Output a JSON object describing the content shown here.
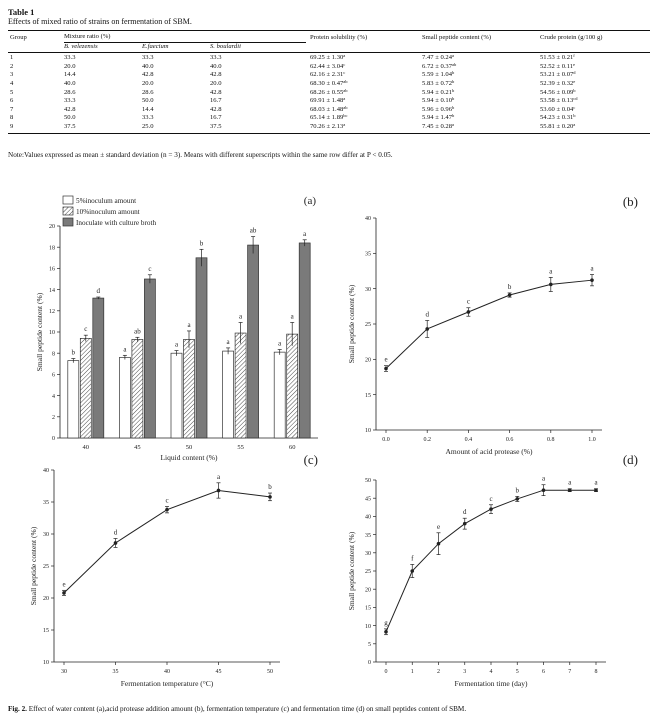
{
  "table": {
    "title": "Table 1",
    "caption": "Effects of mixed ratio of strains on fermentation of SBM.",
    "headers": {
      "group": "Group",
      "mixture": "Mixture ratio (%)",
      "solubility": "Protein solubility (%)",
      "peptide": "Small peptide content (%)",
      "crude": "Crude protein (g/100 g)"
    },
    "subheaders": [
      "B. velezensis",
      "E.faecium",
      "S. boulardii"
    ],
    "rows": [
      {
        "group": "1",
        "bv": "33.3",
        "ef": "33.3",
        "sb": "33.3",
        "sol": "69.25 ± 1.30",
        "sol_sup": "a",
        "pep": "7.47 ± 0.24",
        "pep_sup": "a",
        "cp": "51.53 ± 0.21",
        "cp_sup": "f"
      },
      {
        "group": "2",
        "bv": "20.0",
        "ef": "40.0",
        "sb": "40.0",
        "sol": "62.44 ± 3.04",
        "sol_sup": "c",
        "pep": "6.72 ± 0.37",
        "pep_sup": "ab",
        "cp": "52.52 ± 0.11",
        "cp_sup": "e"
      },
      {
        "group": "3",
        "bv": "14.4",
        "ef": "42.8",
        "sb": "42.8",
        "sol": "62.16 ± 2.31",
        "sol_sup": "c",
        "pep": "5.59 ± 1.04",
        "pep_sup": "b",
        "cp": "53.21 ± 0.07",
        "cp_sup": "d"
      },
      {
        "group": "4",
        "bv": "40.0",
        "ef": "20.0",
        "sb": "20.0",
        "sol": "68.30 ± 0.47",
        "sol_sup": "ab",
        "pep": "5.83 ± 0.72",
        "pep_sup": "b",
        "cp": "52.39 ± 0.32",
        "cp_sup": "e"
      },
      {
        "group": "5",
        "bv": "28.6",
        "ef": "28.6",
        "sb": "42.8",
        "sol": "68.26 ± 0.55",
        "sol_sup": "ab",
        "pep": "5.94 ± 0.21",
        "pep_sup": "b",
        "cp": "54.56 ± 0.09",
        "cp_sup": "b"
      },
      {
        "group": "6",
        "bv": "33.3",
        "ef": "50.0",
        "sb": "16.7",
        "sol": "69.91 ± 1.48",
        "sol_sup": "a",
        "pep": "5.94 ± 0.10",
        "pep_sup": "b",
        "cp": "53.58 ± 0.13",
        "cp_sup": "cd"
      },
      {
        "group": "7",
        "bv": "42.8",
        "ef": "14.4",
        "sb": "42.8",
        "sol": "68.03 ± 1.48",
        "sol_sup": "ab",
        "pep": "5.96 ± 0.96",
        "pep_sup": "b",
        "cp": "53.60 ± 0.04",
        "cp_sup": "c"
      },
      {
        "group": "8",
        "bv": "50.0",
        "ef": "33.3",
        "sb": "16.7",
        "sol": "65.14 ± 1.89",
        "sol_sup": "bc",
        "pep": "5.94 ± 1.47",
        "pep_sup": "b",
        "cp": "54.23 ± 0.31",
        "cp_sup": "b"
      },
      {
        "group": "9",
        "bv": "37.5",
        "ef": "25.0",
        "sb": "37.5",
        "sol": "70.26 ± 2.13",
        "sol_sup": "a",
        "pep": "7.45 ± 0.28",
        "pep_sup": "a",
        "cp": "55.81 ± 0.20",
        "cp_sup": "a"
      }
    ],
    "note": "Note:Values expressed as mean ± standard deviation (n = 3). Means with different superscripts within the same row differ at P < 0.05."
  },
  "figure_caption": {
    "label": "Fig. 2.",
    "text": "Effect of water content (a),acid protease addition amount (b), fermentation temperature (c) and fermentation time (d) on small peptides content of SBM."
  },
  "chart_data": [
    {
      "panel": "(a)",
      "type": "bar",
      "xlabel": "Liquid content (%)",
      "ylabel": "Small peptide content (%)",
      "categories": [
        "40",
        "45",
        "50",
        "55",
        "60"
      ],
      "ylim": [
        0,
        20
      ],
      "yticks": [
        0,
        2,
        4,
        6,
        8,
        10,
        12,
        14,
        16,
        18,
        20
      ],
      "legend_position": "top-left",
      "series": [
        {
          "name": "5%inoculum amount",
          "color": "#ffffff",
          "pattern": "open",
          "values": [
            7.3,
            7.6,
            8.0,
            8.2,
            8.1
          ],
          "errors": [
            0.2,
            0.2,
            0.25,
            0.3,
            0.25
          ],
          "labels": [
            "b",
            "a",
            "a",
            "a",
            "a"
          ]
        },
        {
          "name": "10%inoculum amount",
          "color": "#ffffff",
          "pattern": "hatched",
          "values": [
            9.4,
            9.3,
            9.3,
            9.9,
            9.8
          ],
          "errors": [
            0.3,
            0.2,
            0.8,
            1.0,
            1.1
          ],
          "labels": [
            "c",
            "ab",
            "a",
            "a",
            "a"
          ]
        },
        {
          "name": "Inoculate with culture broth",
          "color": "#7a7a7a",
          "pattern": "solid",
          "values": [
            13.2,
            15.0,
            17.0,
            18.2,
            18.4
          ],
          "errors": [
            0.1,
            0.4,
            0.8,
            0.8,
            0.3
          ],
          "labels": [
            "d",
            "c",
            "b",
            "ab",
            "a"
          ]
        }
      ]
    },
    {
      "panel": "(b)",
      "type": "line",
      "xlabel": "Amount of acid protease (%)",
      "ylabel": "Small peptide content (%)",
      "x": [
        0.0,
        0.2,
        0.4,
        0.6,
        0.8,
        1.0
      ],
      "xticks": [
        "0.0",
        "0.2",
        "0.4",
        "0.6",
        "0.8",
        "1.0"
      ],
      "ylim": [
        10,
        40
      ],
      "yticks": [
        10,
        15,
        20,
        25,
        30,
        35,
        40
      ],
      "series": [
        {
          "values": [
            18.7,
            24.3,
            26.7,
            29.1,
            30.6,
            31.2
          ],
          "errors": [
            0.4,
            1.2,
            0.6,
            0.3,
            1.0,
            0.8
          ],
          "labels": [
            "e",
            "d",
            "c",
            "b",
            "a",
            "a"
          ]
        }
      ]
    },
    {
      "panel": "(c)",
      "type": "line",
      "xlabel": "Fermentation temperature (°C)",
      "ylabel": "Small peptide content (%)",
      "x": [
        30,
        35,
        40,
        45,
        50
      ],
      "xticks": [
        "30",
        "35",
        "40",
        "45",
        "50"
      ],
      "ylim": [
        10,
        40
      ],
      "yticks": [
        10,
        15,
        20,
        25,
        30,
        35,
        40
      ],
      "series": [
        {
          "values": [
            20.8,
            28.6,
            33.8,
            36.8,
            35.8
          ],
          "errors": [
            0.4,
            0.7,
            0.5,
            1.2,
            0.6
          ],
          "labels": [
            "e",
            "d",
            "c",
            "a",
            "b"
          ]
        }
      ]
    },
    {
      "panel": "(d)",
      "type": "line",
      "xlabel": "Fermentation time (day)",
      "ylabel": "Small peptide content (%)",
      "x": [
        0,
        1,
        2,
        3,
        4,
        5,
        6,
        7,
        8
      ],
      "xticks": [
        "0",
        "1",
        "2",
        "3",
        "4",
        "5",
        "6",
        "7",
        "8"
      ],
      "ylim": [
        0,
        50
      ],
      "yticks": [
        0,
        5,
        10,
        15,
        20,
        25,
        30,
        35,
        40,
        45,
        50
      ],
      "series": [
        {
          "values": [
            8.3,
            25.0,
            32.5,
            38.0,
            42.0,
            44.8,
            47.2,
            47.2,
            47.2
          ],
          "errors": [
            0.8,
            1.8,
            3.0,
            1.5,
            1.2,
            0.7,
            1.5,
            0.4,
            0.4
          ],
          "labels": [
            "g",
            "f",
            "e",
            "d",
            "c",
            "b",
            "a",
            "a",
            "a"
          ]
        }
      ]
    }
  ]
}
